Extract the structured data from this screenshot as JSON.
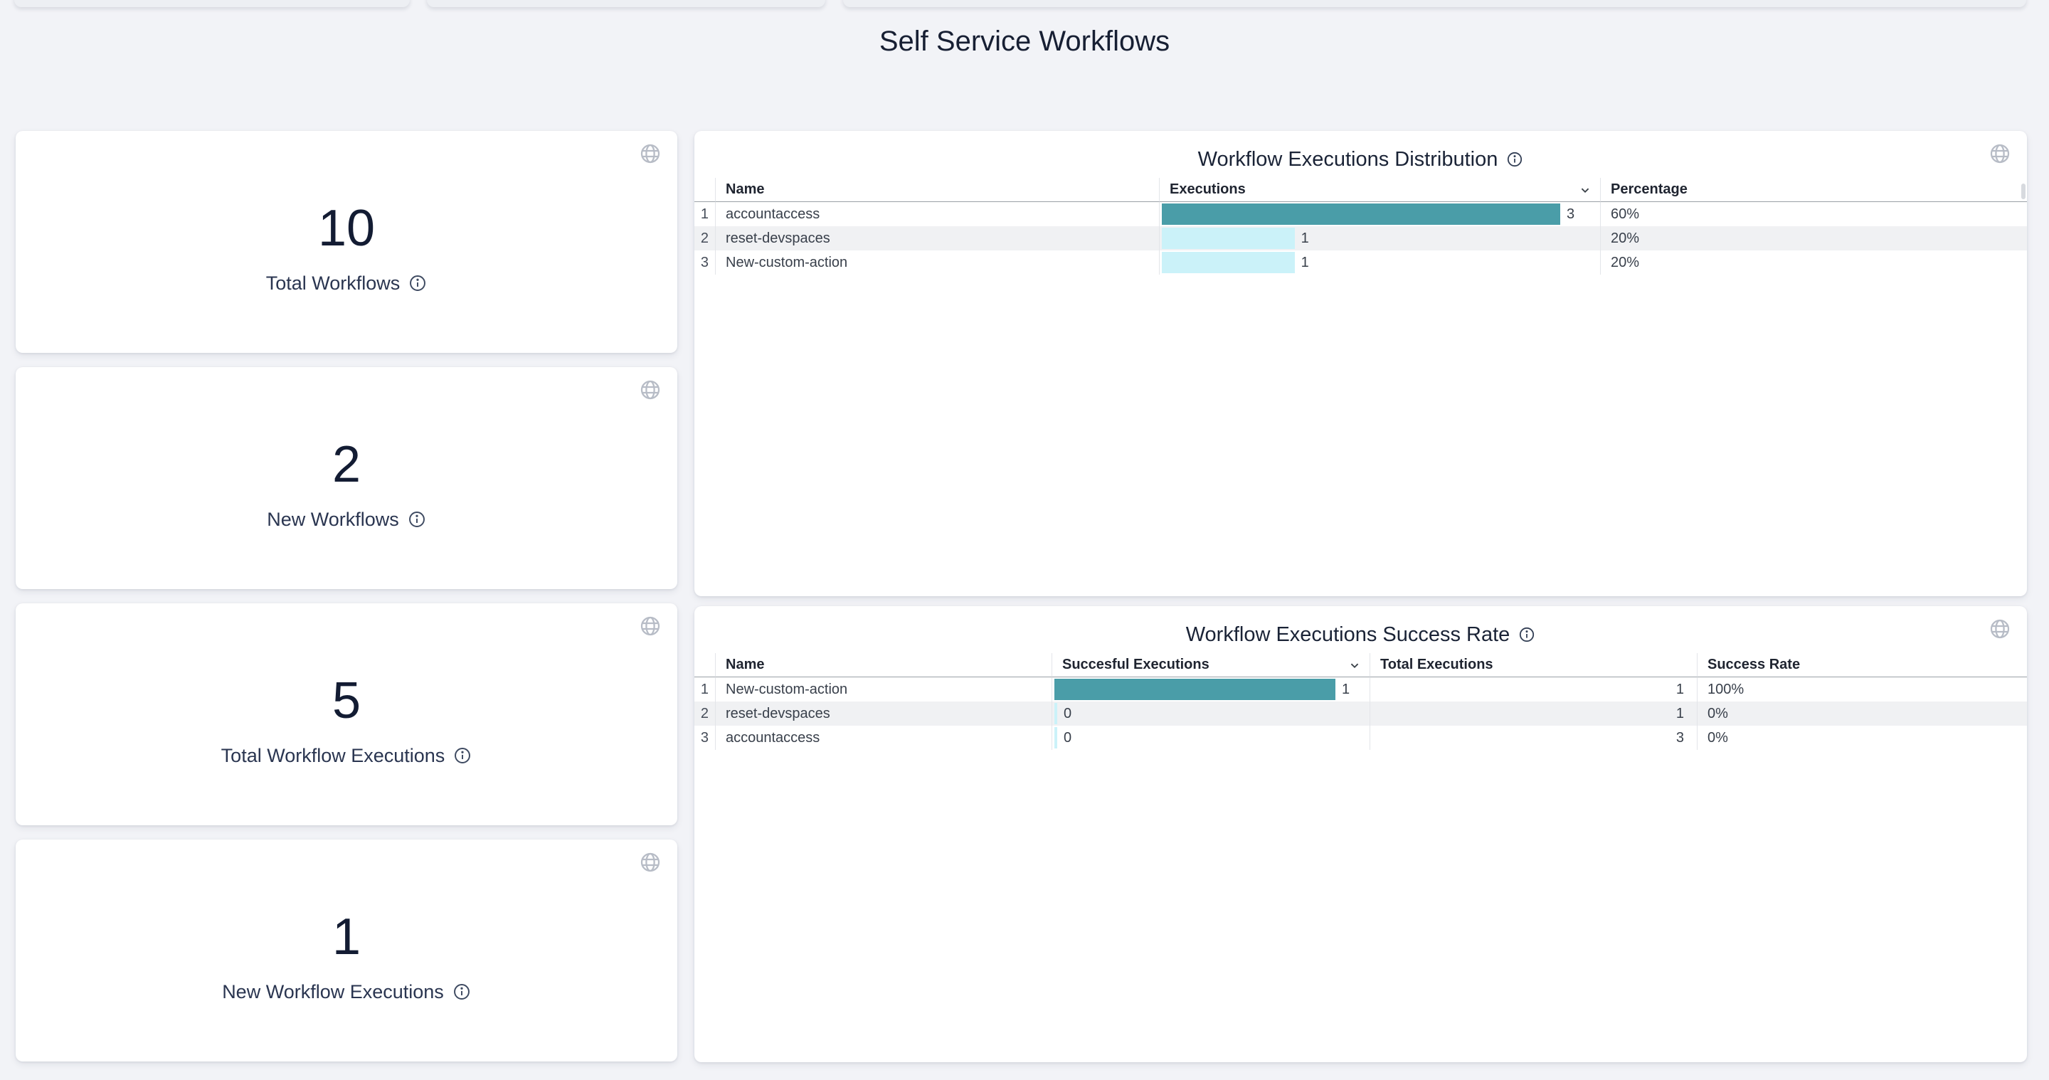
{
  "page": {
    "title": "Self Service Workflows"
  },
  "colors": {
    "bar_primary": "#4A9DA8",
    "bar_secondary": "#CBF2F9",
    "zebra_row": "#f0f1f3",
    "page_background": "#f2f3f7"
  },
  "stat_cards": [
    {
      "value": "10",
      "label": "Total Workflows"
    },
    {
      "value": "2",
      "label": "New Workflows"
    },
    {
      "value": "5",
      "label": "Total Workflow Executions"
    },
    {
      "value": "1",
      "label": "New Workflow Executions"
    }
  ],
  "distribution_table": {
    "title": "Workflow Executions Distribution",
    "columns": [
      "Name",
      "Executions",
      "Percentage"
    ],
    "sort": {
      "column": "Executions",
      "direction": "desc"
    },
    "rows": [
      {
        "index": "1",
        "name": "accountaccess",
        "executions": 3,
        "percentage": "60%"
      },
      {
        "index": "2",
        "name": "reset-devspaces",
        "executions": 1,
        "percentage": "20%"
      },
      {
        "index": "3",
        "name": "New-custom-action",
        "executions": 1,
        "percentage": "20%"
      }
    ]
  },
  "success_table": {
    "title": "Workflow Executions Success Rate",
    "columns": [
      "Name",
      "Succesful Executions",
      "Total Executions",
      "Success Rate"
    ],
    "sort": {
      "column": "Succesful Executions",
      "direction": "desc"
    },
    "rows": [
      {
        "index": "1",
        "name": "New-custom-action",
        "successful": 1,
        "total": "1",
        "rate": "100%"
      },
      {
        "index": "2",
        "name": "reset-devspaces",
        "successful": 0,
        "total": "1",
        "rate": "0%"
      },
      {
        "index": "3",
        "name": "accountaccess",
        "successful": 0,
        "total": "3",
        "rate": "0%"
      }
    ]
  }
}
